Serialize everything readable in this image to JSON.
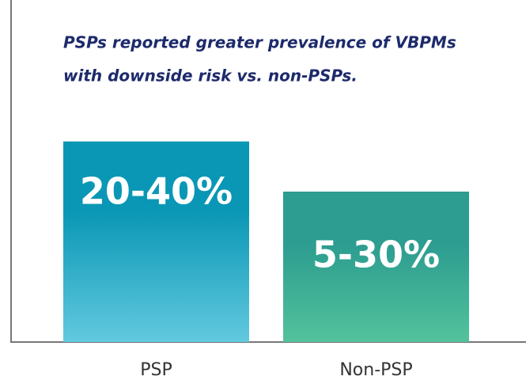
{
  "chart_data": {
    "type": "bar",
    "title": [
      "PSPs reported greater prevalence of VBPMs",
      "with downside risk vs. non-PSPs."
    ],
    "categories": [
      "PSP",
      "Non-PSP"
    ],
    "low_values": [
      20,
      5
    ],
    "values": [
      40,
      30
    ],
    "value_labels": [
      "20-40%",
      "5-30%"
    ],
    "colors": [
      "#0a97b5",
      "#2c9d90"
    ],
    "colors_bottom": [
      "#62c9df",
      "#53c29b"
    ],
    "ylim": [
      0,
      48
    ]
  }
}
